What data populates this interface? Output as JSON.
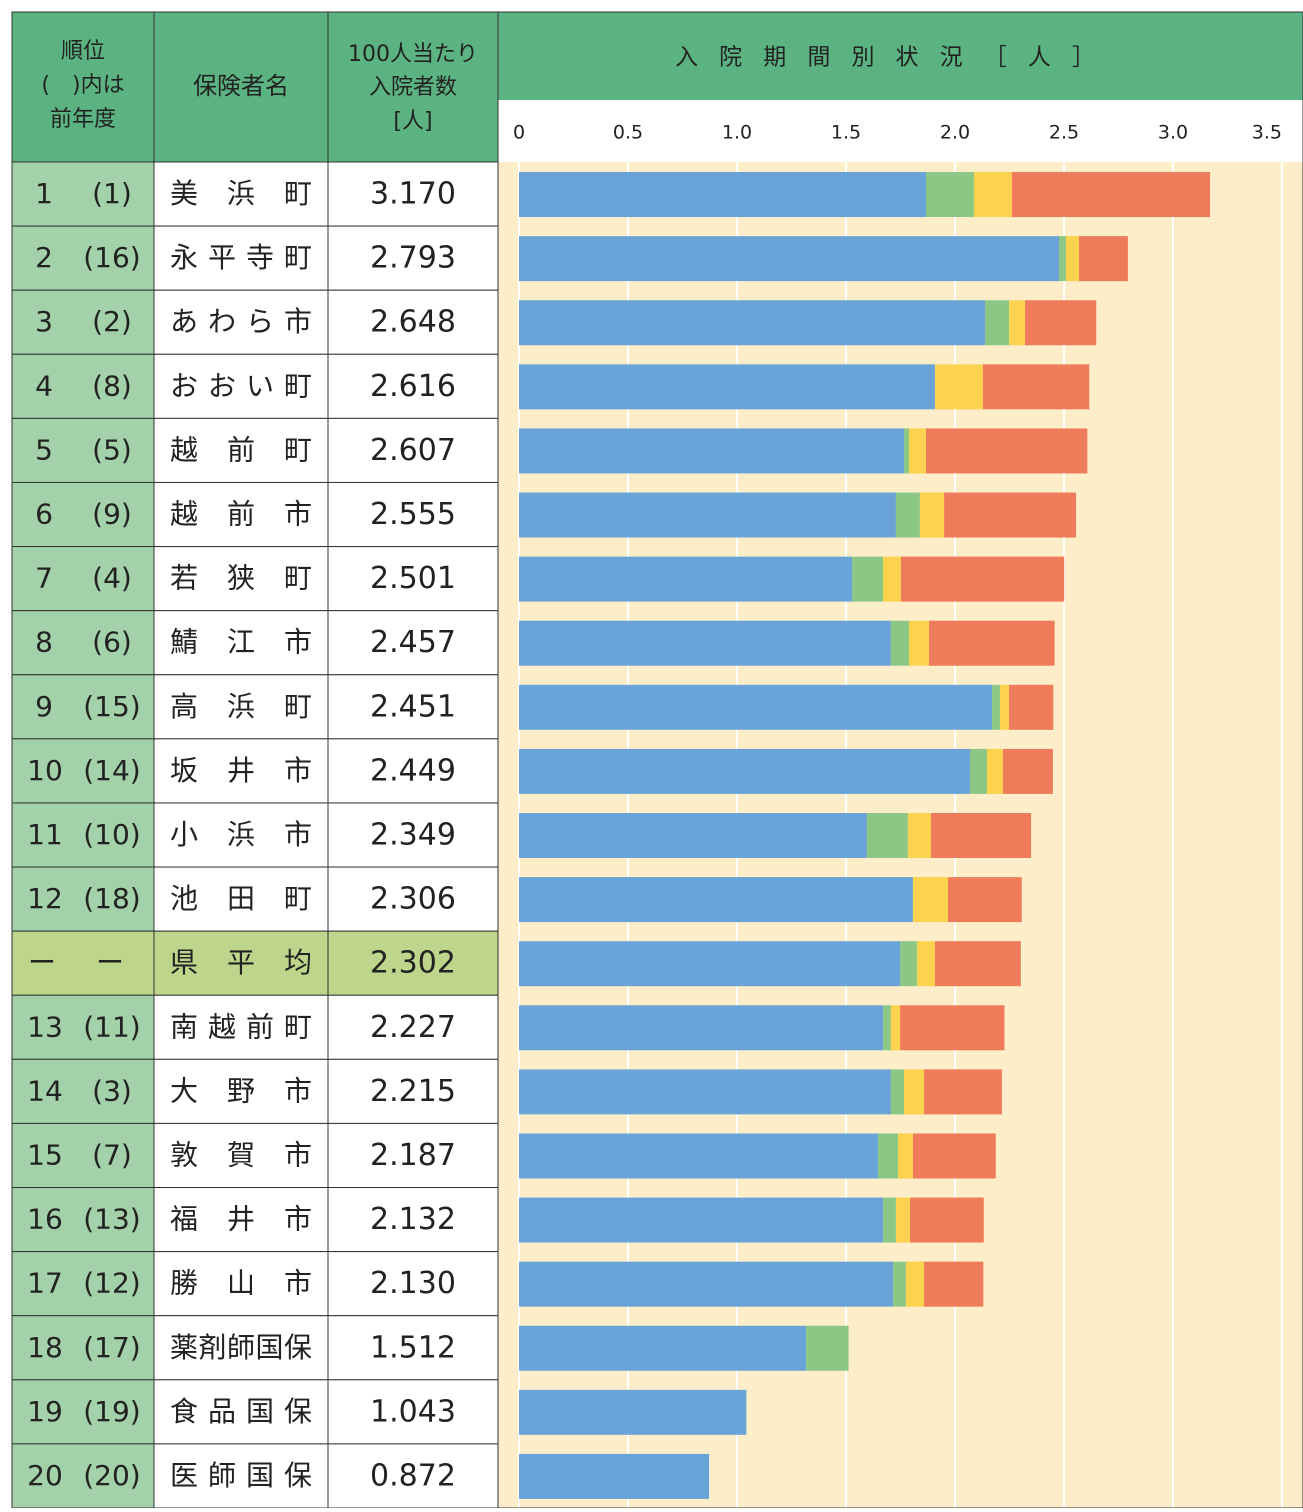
{
  "header": {
    "rank": "順位",
    "rank_note": "(　)内は",
    "rank_note2": "前年度",
    "insurer": "保険者名",
    "per100_1": "100人当たり",
    "per100_2": "入院者数",
    "per100_3": "[人]"
  },
  "chart_data": {
    "type": "stacked-bar-horizontal",
    "title": "入院期間別状況［人］",
    "xlim": [
      0,
      3.5
    ],
    "xticks": [
      0,
      0.5,
      {
        "value": 1,
        "label": "1.0"
      },
      1.5,
      {
        "value": 2,
        "label": "2.0"
      },
      2.5,
      {
        "value": 3,
        "label": "3.0"
      },
      3.5
    ],
    "grid": true,
    "rows": [
      {
        "rank": "1",
        "prev": "(1)",
        "name": "美浜町",
        "total": "3.170"
      },
      {
        "rank": "2",
        "prev": "(16)",
        "name": "永平寺町",
        "total": "2.793"
      },
      {
        "rank": "3",
        "prev": "(2)",
        "name": "あわら市",
        "total": "2.648"
      },
      {
        "rank": "4",
        "prev": "(8)",
        "name": "おおい町",
        "total": "2.616"
      },
      {
        "rank": "5",
        "prev": "(5)",
        "name": "越前町",
        "total": "2.607"
      },
      {
        "rank": "6",
        "prev": "(9)",
        "name": "越前市",
        "total": "2.555"
      },
      {
        "rank": "7",
        "prev": "(4)",
        "name": "若狭町",
        "total": "2.501"
      },
      {
        "rank": "8",
        "prev": "(6)",
        "name": "鯖江市",
        "total": "2.457"
      },
      {
        "rank": "9",
        "prev": "(15)",
        "name": "高浜町",
        "total": "2.451"
      },
      {
        "rank": "10",
        "prev": "(14)",
        "name": "坂井市",
        "total": "2.449"
      },
      {
        "rank": "11",
        "prev": "(10)",
        "name": "小浜市",
        "total": "2.349"
      },
      {
        "rank": "12",
        "prev": "(18)",
        "name": "池田町",
        "total": "2.306"
      },
      {
        "rank": "ー",
        "prev": "ー",
        "name": "県平均",
        "total": "2.302"
      },
      {
        "rank": "13",
        "prev": "(11)",
        "name": "南越前町",
        "total": "2.227"
      },
      {
        "rank": "14",
        "prev": "(3)",
        "name": "大野市",
        "total": "2.215"
      },
      {
        "rank": "15",
        "prev": "(7)",
        "name": "敦賀市",
        "total": "2.187"
      },
      {
        "rank": "16",
        "prev": "(13)",
        "name": "福井市",
        "total": "2.132"
      },
      {
        "rank": "17",
        "prev": "(12)",
        "name": "勝山市",
        "total": "2.130"
      },
      {
        "rank": "18",
        "prev": "(17)",
        "name": "薬剤師国保",
        "total": "1.512"
      },
      {
        "rank": "19",
        "prev": "(19)",
        "name": "食品国保",
        "total": "1.043"
      },
      {
        "rank": "20",
        "prev": "(20)",
        "name": "医師国保",
        "total": "0.872"
      }
    ],
    "series": [
      {
        "color": "#6aa3d8",
        "values": [
          1.867,
          2.477,
          2.138,
          1.908,
          1.766,
          1.729,
          1.528,
          1.706,
          2.17,
          2.069,
          1.596,
          1.807,
          1.748,
          1.67,
          1.706,
          1.647,
          1.67,
          1.716,
          1.317,
          1.043,
          0.872
        ]
      },
      {
        "color": "#8cc785",
        "values": [
          0.22,
          0.032,
          0.11,
          0,
          0.023,
          0.11,
          0.142,
          0.083,
          0.036,
          0.078,
          0.188,
          0,
          0.078,
          0.036,
          0.06,
          0.092,
          0.059,
          0.059,
          0.195,
          0,
          0
        ]
      },
      {
        "color": "#fdd24f",
        "values": [
          0.174,
          0.06,
          0.073,
          0.22,
          0.078,
          0.111,
          0.082,
          0.092,
          0.042,
          0.073,
          0.106,
          0.161,
          0.082,
          0.042,
          0.092,
          0.068,
          0.065,
          0.083,
          0,
          0,
          0
        ]
      },
      {
        "color": "#ee7b5a",
        "values": [
          0.909,
          0.224,
          0.327,
          0.488,
          0.74,
          0.605,
          0.749,
          0.576,
          0.203,
          0.229,
          0.459,
          0.338,
          0.394,
          0.479,
          0.357,
          0.38,
          0.338,
          0.272,
          0,
          0,
          0
        ]
      }
    ]
  }
}
